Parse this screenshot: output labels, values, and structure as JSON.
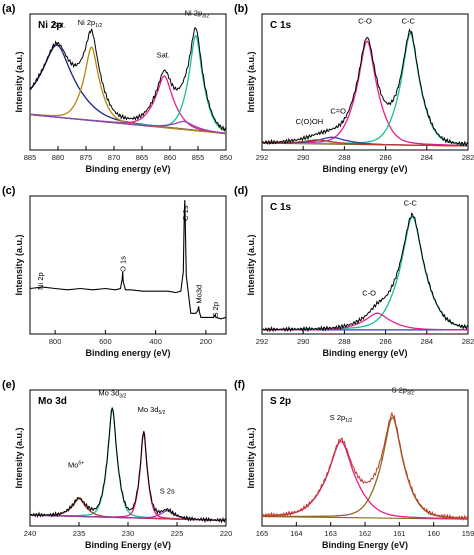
{
  "chart_data": [
    {
      "id": "a",
      "panel_label": "(a)",
      "title": "Ni 2p",
      "type": "line",
      "xlabel": "Binding energy (eV)",
      "ylabel": "Intensity (a.u.)",
      "xlim": [
        885,
        850
      ],
      "xticks": [
        885,
        880,
        875,
        870,
        865,
        860,
        855,
        850
      ],
      "ylim": [
        0,
        1
      ],
      "grid": false,
      "annotations": [
        {
          "text": "Sat.",
          "x": 879.8,
          "y": 0.9
        },
        {
          "text": "Ni 2p",
          "sub": "1/2",
          "x": 874.3,
          "y": 0.92
        },
        {
          "text": "Sat.",
          "x": 861.2,
          "y": 0.68
        },
        {
          "text": "Ni 2p",
          "sub": "3/2",
          "x": 855.2,
          "y": 0.99
        }
      ],
      "baseline": {
        "color": "#7b6a1c",
        "x": [
          885,
          850
        ],
        "y": [
          0.26,
          0.12
        ]
      },
      "peaks": [
        {
          "center": 880.2,
          "height": 0.53,
          "width": 2.6,
          "color": "#1a237e"
        },
        {
          "center": 874.0,
          "height": 0.54,
          "width": 1.2,
          "color": "#b8860b"
        },
        {
          "center": 861.0,
          "height": 0.38,
          "width": 1.4,
          "color": "#e91e8c"
        },
        {
          "center": 855.4,
          "height": 0.7,
          "width": 1.1,
          "color": "#1abc9c"
        },
        {
          "center": 857.5,
          "height": 0.06,
          "width": 1.6,
          "color": "#8e44ad"
        }
      ],
      "envelope_color": "#000000"
    },
    {
      "id": "b",
      "panel_label": "(b)",
      "title": "C 1s",
      "type": "line",
      "xlabel": "Binding energy (eV)",
      "ylabel": "Intensity (a.u.)",
      "xlim": [
        292,
        282
      ],
      "xticks": [
        292,
        290,
        288,
        286,
        284,
        282
      ],
      "ylim": [
        0,
        1
      ],
      "grid": false,
      "annotations": [
        {
          "text": "C-O",
          "x": 287.0,
          "y": 0.93
        },
        {
          "text": "C-C",
          "x": 284.9,
          "y": 0.93
        },
        {
          "text": "C=O",
          "x": 288.3,
          "y": 0.27
        },
        {
          "text": "C(O)OH",
          "x": 289.7,
          "y": 0.19
        }
      ],
      "baseline": {
        "color": "#7b6a1c",
        "x": [
          292,
          282
        ],
        "y": [
          0.05,
          0.03
        ]
      },
      "peaks": [
        {
          "center": 286.9,
          "height": 0.76,
          "width": 0.42,
          "color": "#e91e8c"
        },
        {
          "center": 284.8,
          "height": 0.82,
          "width": 0.4,
          "color": "#1abc9c"
        },
        {
          "center": 288.6,
          "height": 0.05,
          "width": 0.6,
          "color": "#2d3bb4"
        },
        {
          "center": 289.3,
          "height": 0.03,
          "width": 0.6,
          "color": "#c0392b"
        }
      ],
      "envelope_color": "#000000"
    },
    {
      "id": "c",
      "panel_label": "(c)",
      "type": "line",
      "xlabel": "Binding energy (eV)",
      "ylabel": "Intensity (a.u.)",
      "xlim": [
        900,
        120
      ],
      "xticks": [
        800,
        600,
        400,
        200
      ],
      "ylim": [
        0,
        1
      ],
      "grid": false,
      "annotations": [
        {
          "text": "Ni 2p",
          "x": 860,
          "y": 0.32,
          "rotate": true
        },
        {
          "text": "O 1s",
          "x": 531,
          "y": 0.45,
          "rotate": true
        },
        {
          "text": "C 1s",
          "x": 284,
          "y": 0.82,
          "rotate": true
        },
        {
          "text": "Mo3d",
          "x": 229,
          "y": 0.22,
          "rotate": true
        },
        {
          "text": "S 2p",
          "x": 163,
          "y": 0.12,
          "rotate": true
        }
      ],
      "spectrum": {
        "color": "#000000",
        "x": [
          900,
          850,
          800,
          750,
          700,
          650,
          600,
          560,
          540,
          533,
          531,
          529,
          520,
          500,
          450,
          400,
          350,
          320,
          300,
          290,
          286,
          284,
          282,
          278,
          260,
          240,
          232,
          229,
          226,
          220,
          200,
          170,
          163,
          160,
          140,
          120
        ],
        "y": [
          0.33,
          0.34,
          0.33,
          0.32,
          0.33,
          0.32,
          0.33,
          0.32,
          0.33,
          0.4,
          0.45,
          0.38,
          0.32,
          0.32,
          0.31,
          0.31,
          0.31,
          0.3,
          0.31,
          0.45,
          0.88,
          0.97,
          0.8,
          0.42,
          0.15,
          0.15,
          0.17,
          0.2,
          0.16,
          0.12,
          0.12,
          0.12,
          0.14,
          0.12,
          0.11,
          0.12
        ]
      }
    },
    {
      "id": "d",
      "panel_label": "(d)",
      "title": "C 1s",
      "type": "line",
      "xlabel": "Binding energy (eV)",
      "ylabel": "Intensity (a.u.)",
      "xlim": [
        292,
        282
      ],
      "xticks": [
        292,
        290,
        288,
        286,
        284,
        282
      ],
      "ylim": [
        0,
        1
      ],
      "grid": false,
      "annotations": [
        {
          "text": "C-C",
          "x": 284.8,
          "y": 0.93
        },
        {
          "text": "C-O",
          "x": 286.8,
          "y": 0.28
        }
      ],
      "baseline": {
        "color": "#2d3bb4",
        "x": [
          292,
          282
        ],
        "y": [
          0.03,
          0.03
        ]
      },
      "peaks": [
        {
          "center": 284.7,
          "height": 0.82,
          "width": 0.5,
          "color": "#1abc9c"
        },
        {
          "center": 286.4,
          "height": 0.12,
          "width": 0.55,
          "color": "#e91e8c"
        }
      ],
      "envelope_color": "#000000"
    },
    {
      "id": "e",
      "panel_label": "(e)",
      "title": "Mo 3d",
      "type": "line",
      "xlabel": "Binding Energy (eV)",
      "ylabel": "Intensity (a.u.)",
      "xlim": [
        240,
        220
      ],
      "xticks": [
        240,
        235,
        230,
        225,
        220
      ],
      "ylim": [
        0,
        1
      ],
      "grid": false,
      "annotations": [
        {
          "text": "Mo",
          "sup": "6+",
          "x": 235.3,
          "y": 0.43
        },
        {
          "text": "Mo 3d",
          "sub": "3/2",
          "x": 231.6,
          "y": 0.96
        },
        {
          "text": "Mo 3d",
          "sub": "5/2",
          "x": 227.6,
          "y": 0.84
        },
        {
          "text": "S 2s",
          "x": 226.0,
          "y": 0.24
        }
      ],
      "baseline": {
        "color": "#8e6b1c",
        "x": [
          240,
          220
        ],
        "y": [
          0.08,
          0.04
        ]
      },
      "peaks": [
        {
          "center": 231.6,
          "height": 0.8,
          "width": 0.42,
          "color": "#1abc9c"
        },
        {
          "center": 228.4,
          "height": 0.63,
          "width": 0.32,
          "color": "#e91e8c"
        },
        {
          "center": 235.0,
          "height": 0.13,
          "width": 0.6,
          "color": "#c0392b"
        },
        {
          "center": 226.0,
          "height": 0.06,
          "width": 0.6,
          "color": "#8e44ad"
        }
      ],
      "envelope_color": "#000000"
    },
    {
      "id": "f",
      "panel_label": "(f)",
      "title": "S 2p",
      "type": "line",
      "xlabel": "Binding Energy (eV)",
      "ylabel": "Intensity (a.u.)",
      "xlim": [
        165,
        159
      ],
      "xticks": [
        165,
        164,
        163,
        162,
        161,
        160,
        159
      ],
      "ylim": [
        0,
        1
      ],
      "grid": false,
      "annotations": [
        {
          "text": "S 2p",
          "sub": "1/2",
          "x": 162.7,
          "y": 0.78
        },
        {
          "text": "S 2p",
          "sub": "3/2",
          "x": 160.9,
          "y": 0.98
        }
      ],
      "baseline": {
        "color": "#8e6b1c",
        "x": [
          165,
          159
        ],
        "y": [
          0.07,
          0.05
        ]
      },
      "peaks": [
        {
          "center": 162.7,
          "height": 0.56,
          "width": 0.34,
          "color": "#e91e8c"
        },
        {
          "center": 161.2,
          "height": 0.74,
          "width": 0.27,
          "color": "#8e6b1c"
        }
      ],
      "envelope_color": "#c0392b"
    }
  ]
}
